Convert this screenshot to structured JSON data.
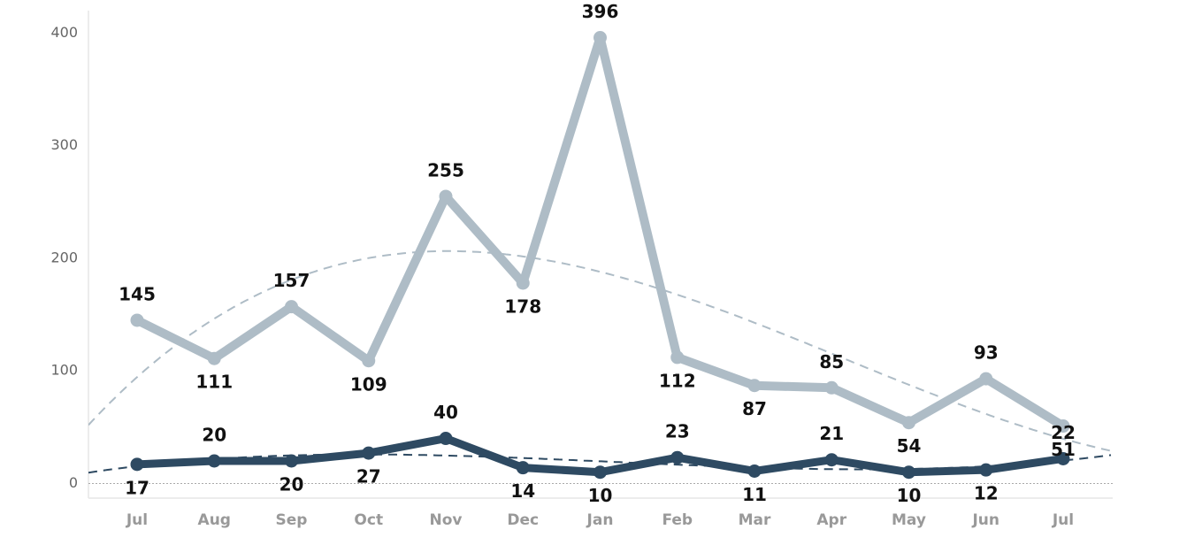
{
  "chart_data": {
    "type": "line",
    "categories": [
      "Jul",
      "Aug",
      "Sep",
      "Oct",
      "Nov",
      "Dec",
      "Jan",
      "Feb",
      "Mar",
      "Apr",
      "May",
      "Jun",
      "Jul"
    ],
    "series": [
      {
        "color": "#aebcc6",
        "values": [
          145,
          111,
          157,
          109,
          255,
          178,
          396,
          112,
          87,
          85,
          54,
          93,
          51
        ]
      },
      {
        "color": "#2e4a62",
        "values": [
          17,
          20,
          20,
          27,
          40,
          14,
          10,
          23,
          11,
          21,
          10,
          12,
          22
        ]
      }
    ],
    "ylim": [
      -13,
      420
    ],
    "yticks": [
      0,
      100,
      200,
      300,
      400
    ],
    "grid": false,
    "trendline": true,
    "data_labels": true
  }
}
